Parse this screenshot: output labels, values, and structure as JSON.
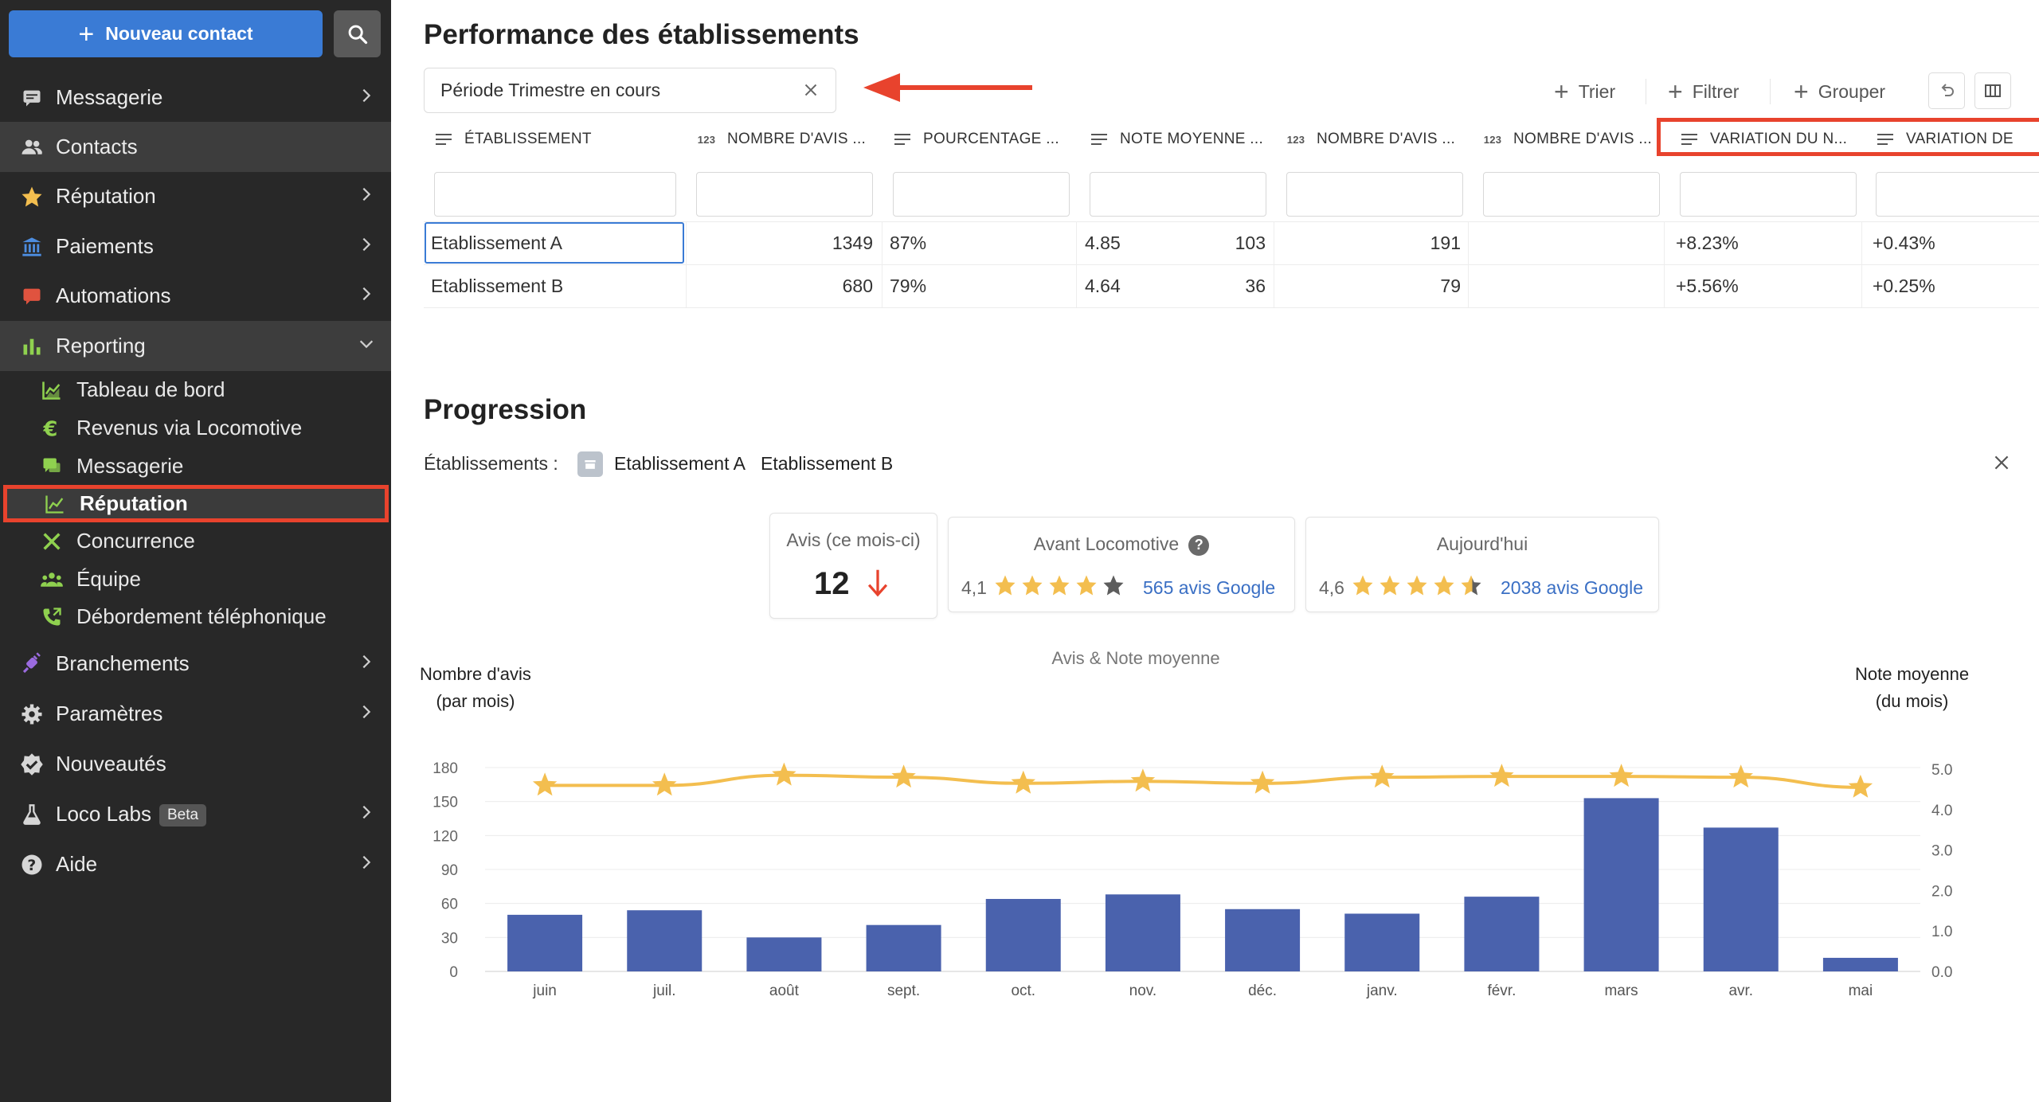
{
  "sidebar": {
    "new_contact_label": "Nouveau contact",
    "items": [
      {
        "id": "messagerie",
        "label": "Messagerie",
        "icon": "chat-icon",
        "chevron": "right",
        "top": 90
      },
      {
        "id": "contacts",
        "label": "Contacts",
        "icon": "people-icon",
        "chevron": "",
        "top": 153,
        "active": true
      },
      {
        "id": "reputation",
        "label": "Réputation",
        "icon": "star-icon",
        "chevron": "right",
        "top": 216
      },
      {
        "id": "paiements",
        "label": "Paiements",
        "icon": "bank-icon",
        "chevron": "right",
        "top": 279
      },
      {
        "id": "automations",
        "label": "Automations",
        "icon": "automation-icon",
        "chevron": "right",
        "top": 342
      },
      {
        "id": "reporting",
        "label": "Reporting",
        "icon": "bar-chart-icon",
        "chevron": "down",
        "top": 406,
        "active": true
      }
    ],
    "sub_items": [
      {
        "label": "Tableau de bord",
        "icon": "dashboard-chart-icon"
      },
      {
        "label": "Revenus via Locomotive",
        "icon": "euro-icon"
      },
      {
        "label": "Messagerie",
        "icon": "chat-bubble-icon"
      },
      {
        "label": "Réputation",
        "icon": "trend-line-icon",
        "selected": true
      },
      {
        "label": "Concurrence",
        "icon": "swords-icon"
      },
      {
        "label": "Équipe",
        "icon": "team-icon"
      },
      {
        "label": "Débordement téléphonique",
        "icon": "phone-forward-icon"
      }
    ],
    "bottom_items": [
      {
        "label": "Branchements",
        "icon": "plug-icon",
        "chevron": "right"
      },
      {
        "label": "Paramètres",
        "icon": "gear-icon",
        "chevron": "right"
      },
      {
        "label": "Nouveautés",
        "icon": "verified-badge-icon",
        "chevron": ""
      },
      {
        "label": "Loco Labs",
        "icon": "flask-icon",
        "chevron": "right",
        "badge": "Beta"
      },
      {
        "label": "Aide",
        "icon": "help-icon",
        "chevron": "right"
      }
    ]
  },
  "performance": {
    "title": "Performance des établissements",
    "period_chip": "Période Trimestre en cours",
    "toolbar": {
      "sort": "Trier",
      "filter": "Filtrer",
      "group": "Grouper"
    },
    "columns": [
      {
        "label": "ÉTABLISSEMENT",
        "type": "text"
      },
      {
        "label": "NOMBRE D'AVIS ...",
        "type": "num"
      },
      {
        "label": "POURCENTAGE ...",
        "type": "text"
      },
      {
        "label": "NOTE MOYENNE ...",
        "type": "text"
      },
      {
        "label": "NOMBRE D'AVIS ...",
        "type": "num"
      },
      {
        "label": "NOMBRE D'AVIS ...",
        "type": "num"
      },
      {
        "label": "VARIATION DU N...",
        "type": "text"
      },
      {
        "label": "VARIATION DE",
        "type": "text"
      }
    ],
    "rows": [
      [
        "Etablissement A",
        "1349",
        "87%",
        "4.85",
        "103",
        "191",
        "+8.23%",
        "+0.43%"
      ],
      [
        "Etablissement B",
        "680",
        "79%",
        "4.64",
        "36",
        "79",
        "+5.56%",
        "+0.25%"
      ]
    ]
  },
  "progression": {
    "title": "Progression",
    "establishments_label": "Établissements :",
    "establishments": [
      "Etablissement A",
      "Etablissement B"
    ],
    "card_month": {
      "title": "Avis (ce mois-ci)",
      "value": "12"
    },
    "card_before": {
      "title": "Avant Locomotive",
      "rating": "4,1",
      "reviews": "565 avis Google",
      "stars": 4.1
    },
    "card_today": {
      "title": "Aujourd'hui",
      "rating": "4,6",
      "reviews": "2038 avis Google",
      "stars": 4.6
    }
  },
  "chart_data": {
    "type": "bar",
    "title": "Avis & Note moyenne",
    "ylabel_left": "Nombre d'avis\n(par mois)",
    "ylabel_right": "Note moyenne\n(du mois)",
    "categories": [
      "juin",
      "juil.",
      "août",
      "sept.",
      "oct.",
      "nov.",
      "déc.",
      "janv.",
      "févr.",
      "mars",
      "avr.",
      "mai"
    ],
    "y_left_ticks": [
      "0",
      "30",
      "60",
      "90",
      "120",
      "150",
      "180"
    ],
    "y_right_ticks": [
      "0.0",
      "1.0",
      "2.0",
      "3.0",
      "4.0",
      "5.0"
    ],
    "ylim_left": [
      0,
      180
    ],
    "ylim_right": [
      0,
      5
    ],
    "series": [
      {
        "name": "Avis",
        "kind": "bar",
        "color": "#4a62ad",
        "values": [
          50,
          54,
          30,
          41,
          64,
          68,
          55,
          51,
          66,
          153,
          127,
          12
        ]
      },
      {
        "name": "Note moyenne",
        "kind": "line",
        "color": "#f3be4f",
        "values": [
          4.6,
          4.6,
          4.85,
          4.8,
          4.65,
          4.7,
          4.65,
          4.8,
          4.82,
          4.82,
          4.8,
          4.55
        ]
      }
    ]
  },
  "colors": {
    "accent": "#3a7bd5",
    "highlight": "#e8432d",
    "bar": "#4a62ad",
    "star": "#f3be4f"
  }
}
